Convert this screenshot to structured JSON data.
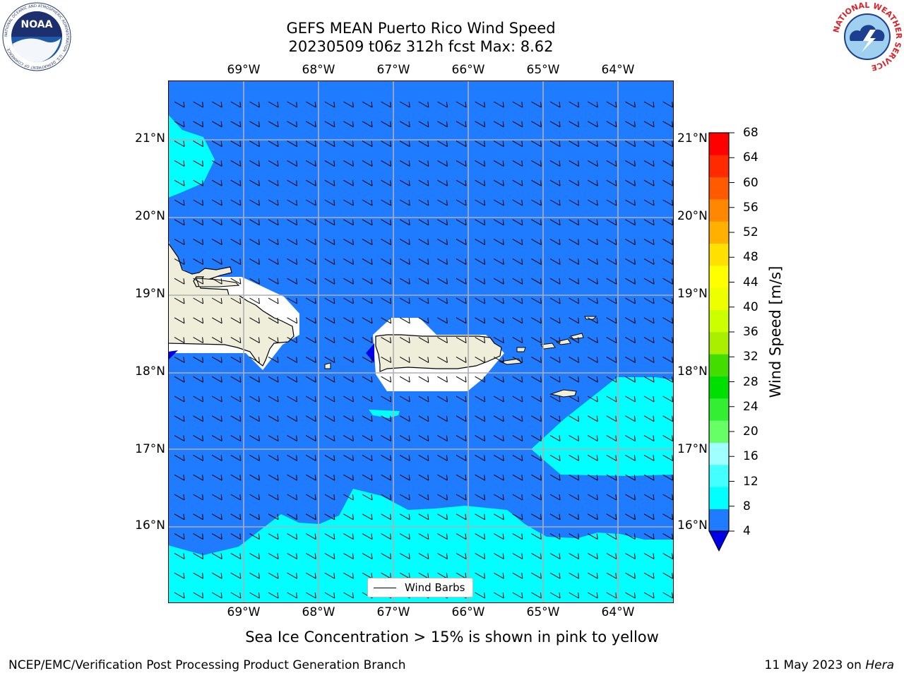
{
  "title": {
    "line1": "GEFS MEAN Puerto Rico Wind Speed",
    "line2": "20230509 t06z 312h fcst   Max: 8.62"
  },
  "map": {
    "lon_labels": [
      "69°W",
      "68°W",
      "67°W",
      "66°W",
      "65°W",
      "64°W"
    ],
    "lat_labels": [
      "21°N",
      "20°N",
      "19°N",
      "18°N",
      "17°N",
      "16°N"
    ],
    "legend_label": "Wind Barbs",
    "colors": {
      "ocean_4_8": "#1f7bff",
      "cyan_8_12": "#00ffff",
      "land": "#efeedb",
      "masked": "#ffffff",
      "low_value": "#0000e6",
      "grid": "#b0b0b0"
    }
  },
  "colorbar": {
    "label": "Wind Speed [m/s]",
    "ticks": [
      "68",
      "64",
      "60",
      "56",
      "52",
      "48",
      "44",
      "40",
      "36",
      "32",
      "28",
      "24",
      "20",
      "16",
      "12",
      "8",
      "4"
    ],
    "colors_bottom_to_top": [
      "#1f7bff",
      "#00ffff",
      "#44ffff",
      "#a0ffff",
      "#66ff66",
      "#33ee33",
      "#00e000",
      "#44dd00",
      "#aaee00",
      "#ccff00",
      "#eeff00",
      "#ffff00",
      "#ffe000",
      "#ffb000",
      "#ff8800",
      "#ff5a00",
      "#ff2a00",
      "#ff0000"
    ],
    "under_color": "#0000e6"
  },
  "footnote": "Sea Ice Concentration > 15% is shown in pink to yellow",
  "credit": "NCEP/EMC/Verification Post Processing Product Generation Branch",
  "date": {
    "text": "11 May 2023 on ",
    "machine": "Hera"
  },
  "logos": {
    "noaa_badge": "NOAA",
    "noaa_ring": "NATIONAL OCEANIC AND ATMOSPHERIC ADMINISTRATION · U.S. DEPARTMENT OF COMMERCE",
    "nws_ring": "NATIONAL WEATHER SERVICE"
  }
}
